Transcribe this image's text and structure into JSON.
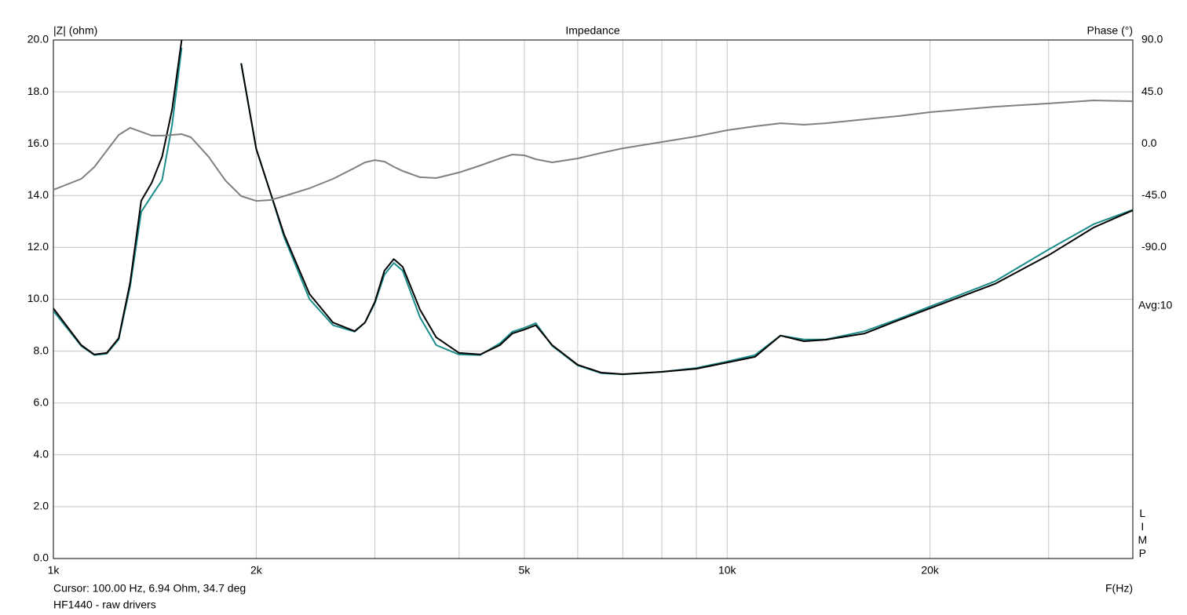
{
  "chart_data": {
    "type": "line",
    "title": "Impedance",
    "y_label": "|Z| (ohm)",
    "y2_label": "Phase (°)",
    "x_label": "F(Hz)",
    "cursor_text": "Cursor: 100.00 Hz, 6.94 Ohm, 34.7 deg",
    "caption": "HF1440 - raw drivers",
    "avg_label": "Avg:10",
    "side_label": "LIMP",
    "log_x": true,
    "grid": true,
    "xlim": [
      1000,
      40000
    ],
    "xticks": [
      {
        "value": 1000,
        "label": "1k"
      },
      {
        "value": 2000,
        "label": "2k"
      },
      {
        "value": 5000,
        "label": "5k"
      },
      {
        "value": 10000,
        "label": "10k"
      },
      {
        "value": 20000,
        "label": "20k"
      }
    ],
    "xminor_ticks": [
      3000,
      4000,
      6000,
      7000,
      8000,
      9000,
      30000,
      40000
    ],
    "ylim": [
      0,
      20
    ],
    "yticks": [
      {
        "value": 0,
        "label": "0.0"
      },
      {
        "value": 2,
        "label": "2.0"
      },
      {
        "value": 4,
        "label": "4.0"
      },
      {
        "value": 6,
        "label": "6.0"
      },
      {
        "value": 8,
        "label": "8.0"
      },
      {
        "value": 10,
        "label": "10.0"
      },
      {
        "value": 12,
        "label": "12.0"
      },
      {
        "value": 14,
        "label": "14.0"
      },
      {
        "value": 16,
        "label": "16.0"
      },
      {
        "value": 18,
        "label": "18.0"
      },
      {
        "value": 20,
        "label": "20.0"
      }
    ],
    "y2lim": [
      -360,
      90
    ],
    "y2ticks": [
      {
        "value": 90,
        "label": "90.0"
      },
      {
        "value": 45,
        "label": "45.0"
      },
      {
        "value": 0,
        "label": "0.0"
      },
      {
        "value": -45,
        "label": "-45.0"
      },
      {
        "value": -90,
        "label": "-90.0"
      }
    ],
    "x": [
      1000,
      1100,
      1150,
      1200,
      1250,
      1300,
      1350,
      1400,
      1450,
      1500,
      1550,
      1600,
      1700,
      1800,
      1900,
      2000,
      2100,
      2200,
      2400,
      2600,
      2800,
      2900,
      3000,
      3100,
      3200,
      3300,
      3500,
      3700,
      4000,
      4300,
      4600,
      4800,
      5000,
      5200,
      5500,
      6000,
      6500,
      7000,
      8000,
      9000,
      10000,
      11000,
      12000,
      13000,
      14000,
      16000,
      18000,
      20000,
      25000,
      30000,
      35000,
      40000
    ],
    "series": [
      {
        "color": "#1a8c8c",
        "values": [
          9.55,
          8.2,
          7.85,
          7.9,
          8.45,
          10.5,
          13.37,
          14.0,
          14.6,
          16.7,
          19.7,
          null,
          null,
          null,
          19.1,
          15.8,
          14.1,
          12.4,
          10.0,
          9.0,
          8.75,
          9.1,
          9.85,
          10.95,
          11.4,
          11.1,
          9.3,
          8.23,
          7.87,
          7.85,
          8.3,
          8.75,
          8.9,
          9.08,
          8.2,
          7.45,
          7.15,
          7.1,
          7.2,
          7.35,
          7.6,
          7.85,
          8.6,
          8.45,
          8.45,
          8.77,
          9.25,
          9.72,
          10.7,
          11.92,
          12.9,
          13.45
        ]
      },
      {
        "color": "#000000",
        "values": [
          9.65,
          8.23,
          7.87,
          7.93,
          8.5,
          10.65,
          13.8,
          14.5,
          15.5,
          17.3,
          20.0,
          null,
          null,
          null,
          19.1,
          15.8,
          14.1,
          12.5,
          10.2,
          9.1,
          8.77,
          9.1,
          9.9,
          11.1,
          11.55,
          11.25,
          9.6,
          8.53,
          7.93,
          7.87,
          8.23,
          8.68,
          8.83,
          9.0,
          8.23,
          7.47,
          7.17,
          7.11,
          7.2,
          7.32,
          7.56,
          7.78,
          8.6,
          8.38,
          8.44,
          8.68,
          9.2,
          9.65,
          10.6,
          11.7,
          12.77,
          13.43
        ]
      },
      {
        "color": "#808080",
        "axis": "y2",
        "values": [
          -40,
          -30.5,
          -20.3,
          -6,
          7.6,
          13.8,
          10.3,
          7,
          7,
          7.6,
          8.3,
          5.6,
          -11.4,
          -31.9,
          -45.5,
          -49.6,
          -48.9,
          -45.5,
          -38.7,
          -30.5,
          -21,
          -16.2,
          -14.2,
          -15.5,
          -20,
          -23.7,
          -29.1,
          -29.8,
          -25,
          -18.9,
          -12.8,
          -9.4,
          -10.1,
          -13.5,
          -16.2,
          -12.8,
          -8,
          -4,
          1.5,
          6.3,
          11.7,
          15.1,
          17.8,
          16.5,
          17.8,
          21.2,
          24,
          27.4,
          32.1,
          34.9,
          37.6,
          36.9
        ]
      }
    ]
  }
}
